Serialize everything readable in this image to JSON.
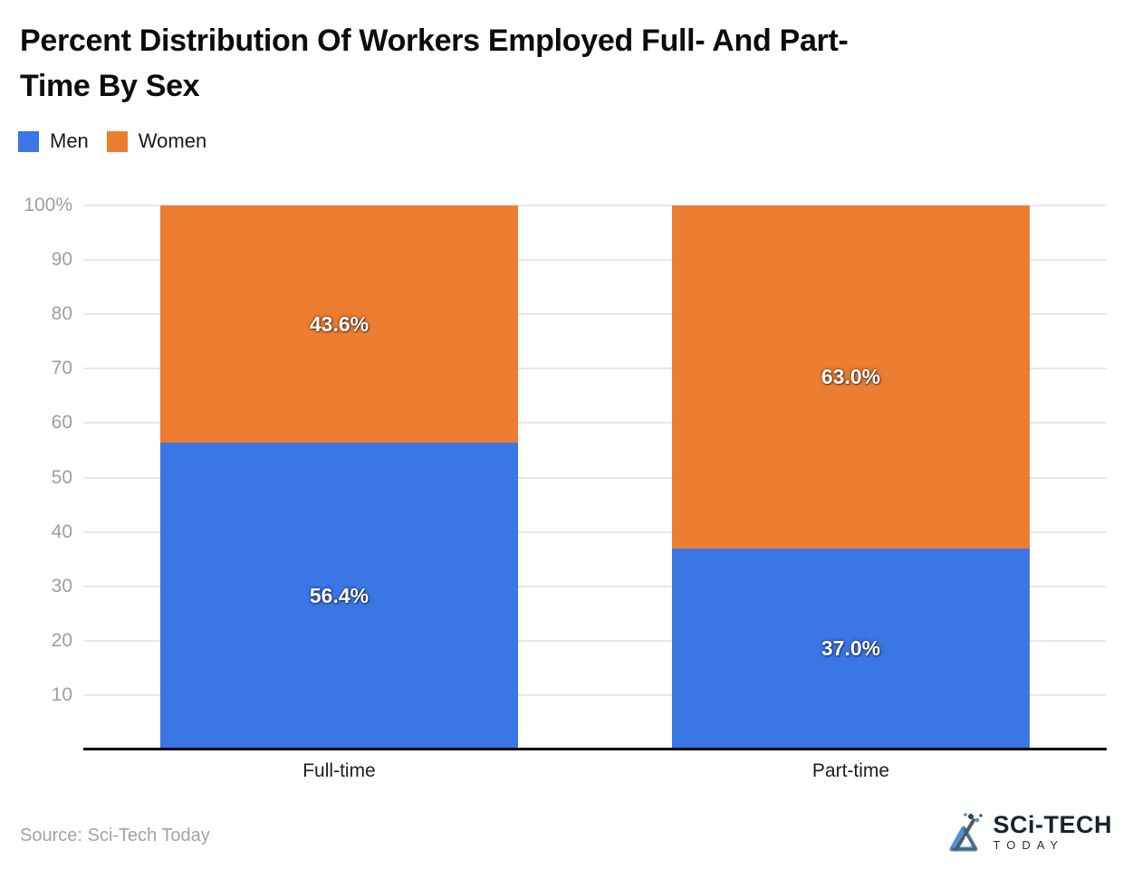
{
  "title": {
    "line1": "Percent Distribution Of Workers Employed Full- And Part-",
    "line2": "Time By Sex"
  },
  "legend": {
    "items": [
      {
        "label": "Men",
        "color": "#3B76E5"
      },
      {
        "label": "Women",
        "color": "#EC7D31"
      }
    ]
  },
  "chart_data": {
    "type": "bar",
    "stacked": true,
    "title": "Percent Distribution Of Workers Employed Full- And Part-Time By Sex",
    "categories": [
      "Full-time",
      "Part-time"
    ],
    "series": [
      {
        "name": "Men",
        "color": "#3B76E5",
        "values": [
          56.4,
          37.0
        ],
        "labels": [
          "56.4%",
          "37.0%"
        ]
      },
      {
        "name": "Women",
        "color": "#EC7D31",
        "values": [
          43.6,
          63.0
        ],
        "labels": [
          "43.6%",
          "63.0%"
        ]
      }
    ],
    "xlabel": "",
    "ylabel": "",
    "ylim": [
      0,
      100
    ],
    "yticks": [
      {
        "value": 100,
        "label": "100%"
      },
      {
        "value": 90,
        "label": "90"
      },
      {
        "value": 80,
        "label": "80"
      },
      {
        "value": 70,
        "label": "70"
      },
      {
        "value": 60,
        "label": "60"
      },
      {
        "value": 50,
        "label": "50"
      },
      {
        "value": 40,
        "label": "40"
      },
      {
        "value": 30,
        "label": "30"
      },
      {
        "value": 20,
        "label": "20"
      },
      {
        "value": 10,
        "label": "10"
      }
    ],
    "grid": true,
    "gridline_color": "#e8e8e8",
    "axis_line_color": "#000000",
    "value_label_color": "#ffffff",
    "legend_position": "top-left"
  },
  "source": {
    "label": "Source: Sci-Tech Today"
  },
  "logo": {
    "word": "SCi-TECH",
    "sub": "TODAY"
  }
}
